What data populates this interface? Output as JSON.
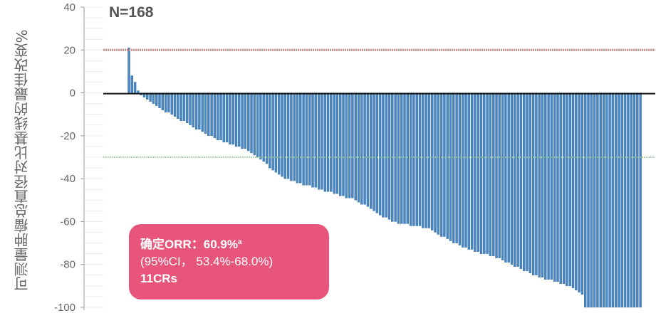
{
  "chart_data": {
    "type": "bar",
    "subtype": "waterfall",
    "title": "",
    "ylabel": "可测量肿瘤总直径对比基线的最佳改变%",
    "xlabel": "",
    "ylim": [
      -100,
      40
    ],
    "yticks": [
      40,
      20,
      0,
      -20,
      -40,
      -60,
      -80,
      -100
    ],
    "grid": false,
    "n_label": "N=168",
    "reference_lines": [
      {
        "value": 20,
        "color": "#c98a8a",
        "style": "dotted"
      },
      {
        "value": 0,
        "color": "#111111",
        "style": "solid"
      },
      {
        "value": -30,
        "color": "#9cc79c",
        "style": "dotted"
      }
    ],
    "bar_color": "#4a86c0",
    "values": [
      21,
      8,
      5,
      1,
      -1,
      -2,
      -3,
      -4,
      -5,
      -6,
      -7,
      -8,
      -9,
      -9,
      -10,
      -11,
      -12,
      -13,
      -13,
      -14,
      -15,
      -16,
      -17,
      -17,
      -18,
      -19,
      -20,
      -20,
      -21,
      -22,
      -22,
      -23,
      -23,
      -24,
      -24,
      -25,
      -25,
      -26,
      -26,
      -27,
      -28,
      -29,
      -30,
      -31,
      -32,
      -33,
      -35,
      -36,
      -37,
      -38,
      -39,
      -40,
      -40,
      -41,
      -41,
      -42,
      -42,
      -43,
      -43,
      -43,
      -44,
      -44,
      -45,
      -45,
      -46,
      -46,
      -46,
      -47,
      -47,
      -48,
      -48,
      -49,
      -49,
      -49,
      -50,
      -51,
      -52,
      -52,
      -53,
      -54,
      -55,
      -56,
      -57,
      -58,
      -58,
      -59,
      -60,
      -60,
      -61,
      -61,
      -61,
      -61,
      -62,
      -62,
      -62,
      -62,
      -63,
      -63,
      -63,
      -64,
      -65,
      -66,
      -67,
      -67,
      -68,
      -69,
      -70,
      -70,
      -71,
      -72,
      -72,
      -73,
      -73,
      -74,
      -74,
      -75,
      -75,
      -75,
      -76,
      -76,
      -77,
      -77,
      -78,
      -79,
      -79,
      -80,
      -81,
      -81,
      -82,
      -83,
      -83,
      -84,
      -85,
      -85,
      -86,
      -86,
      -87,
      -87,
      -87,
      -88,
      -88,
      -89,
      -89,
      -90,
      -90,
      -91,
      -92,
      -93,
      -94,
      -100,
      -100,
      -100,
      -100,
      -100,
      -100,
      -100,
      -100,
      -100,
      -100,
      -100,
      -100,
      -100,
      -100,
      -100,
      -100,
      -100,
      -100,
      -100
    ],
    "annotation": {
      "line1": "确定ORR：60.9%",
      "line1_sup": "a",
      "line2": "(95%CI，  53.4%-68.0%)",
      "line3": "11CRs",
      "color": "#e8557a"
    }
  }
}
